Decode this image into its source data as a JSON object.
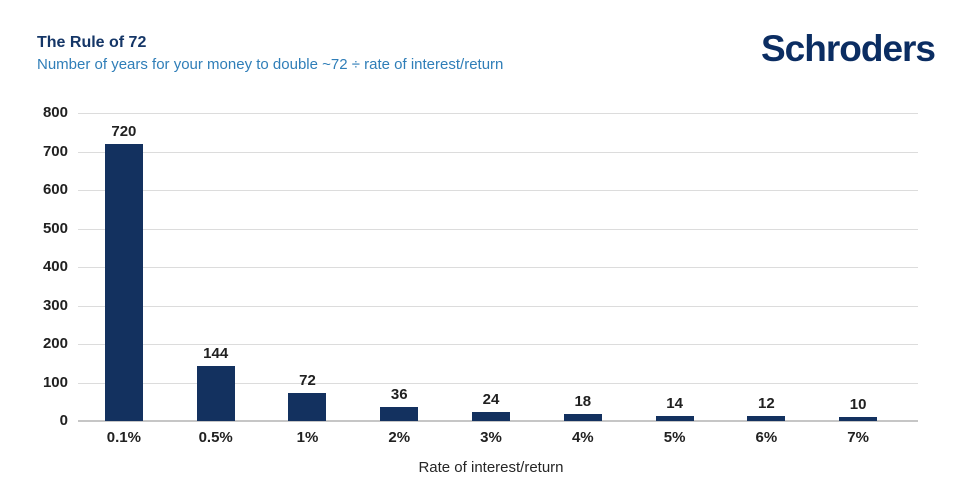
{
  "header": {
    "title": "The Rule of 72",
    "subtitle": "Number of years for your money to double ~72 ÷ rate of interest/return",
    "logo_text": "Schroders"
  },
  "colors": {
    "title": "#153667",
    "subtitle": "#2F7EB8",
    "bar": "#13315F",
    "logo": "#0B2D62",
    "grid": "#DCDCDC",
    "baseline": "#C6C6C6",
    "label": "#212121"
  },
  "chart_data": {
    "type": "bar",
    "title": "The Rule of 72",
    "subtitle": "Number of years for your money to double ~72 ÷ rate of interest/return",
    "categories": [
      "0.1%",
      "0.5%",
      "1%",
      "2%",
      "3%",
      "4%",
      "5%",
      "6%",
      "7%"
    ],
    "values": [
      720,
      144,
      72,
      36,
      24,
      18,
      14,
      12,
      10
    ],
    "data_labels": [
      "720",
      "144",
      "72",
      "36",
      "24",
      "18",
      "14",
      "12",
      "10"
    ],
    "xlabel": "Rate of interest/return",
    "ylabel": "",
    "ylim": [
      0,
      800
    ],
    "yticks": [
      0,
      100,
      200,
      300,
      400,
      500,
      600,
      700,
      800
    ],
    "grid": true,
    "legend": false,
    "bar_color": "#13315F",
    "data_labels_shown": true
  }
}
